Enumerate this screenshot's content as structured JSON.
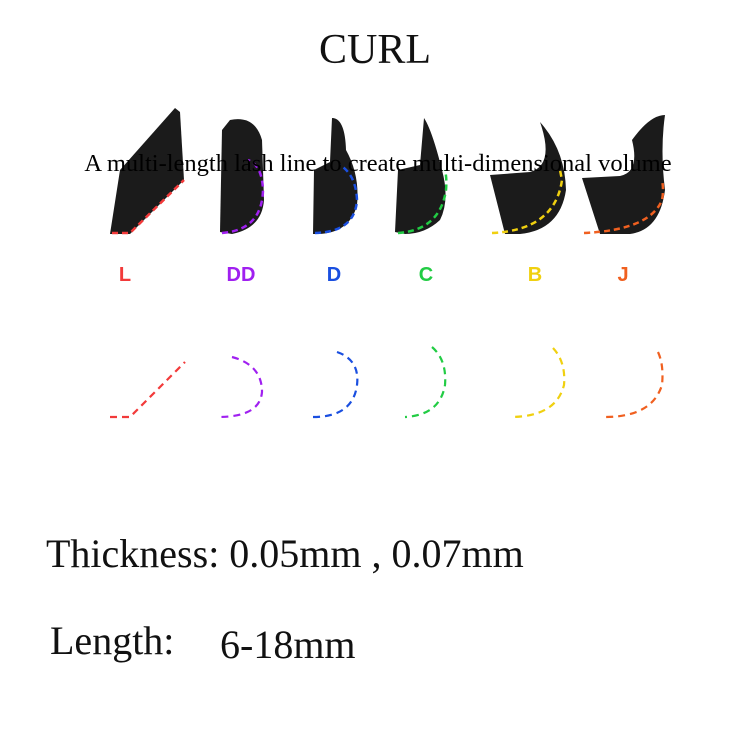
{
  "title": "CURL",
  "subtitle": "A multi-length lash line to create multi-dimensional volume",
  "curls": [
    {
      "label": "L",
      "color": "#f23a3a"
    },
    {
      "label": "DD",
      "color": "#a020f0"
    },
    {
      "label": "D",
      "color": "#1a4fe0"
    },
    {
      "label": "C",
      "color": "#22cc44"
    },
    {
      "label": "B",
      "color": "#f0d010"
    },
    {
      "label": "J",
      "color": "#f06020"
    }
  ],
  "specs": {
    "thickness": "Thickness: 0.05mm , 0.07mm",
    "length_label": "Length:",
    "length_value": "6-18mm"
  }
}
